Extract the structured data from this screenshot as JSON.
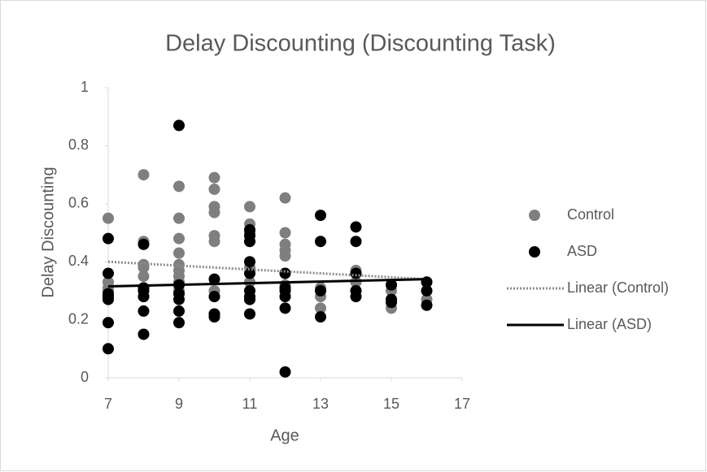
{
  "chart_data": {
    "type": "scatter",
    "title": "Delay Discounting (Discounting Task)",
    "xlabel": "Age",
    "ylabel": "Delay Discounting",
    "xlim": [
      7,
      17
    ],
    "xticks": [
      7,
      9,
      11,
      13,
      15,
      17
    ],
    "ylim": [
      0,
      1
    ],
    "yticks": [
      0,
      0.2,
      0.4,
      0.6,
      0.8,
      1
    ],
    "grid": false,
    "legend": "right",
    "series": [
      {
        "name": "Control",
        "color": "#7f7f7f",
        "mode": "markers",
        "x": [
          7,
          7,
          7,
          7,
          7,
          8,
          8,
          8,
          8,
          8,
          8,
          8,
          9,
          9,
          9,
          9,
          9,
          9,
          9,
          9,
          9,
          10,
          10,
          10,
          10,
          10,
          10,
          10,
          10,
          10,
          11,
          11,
          11,
          11,
          11,
          11,
          11,
          11,
          12,
          12,
          12,
          12,
          12,
          12,
          12,
          12,
          13,
          13,
          13,
          14,
          14,
          14,
          14,
          15,
          15,
          15,
          15,
          16,
          16,
          16
        ],
        "values": [
          0.55,
          0.33,
          0.31,
          0.3,
          0.28,
          0.7,
          0.47,
          0.39,
          0.38,
          0.35,
          0.3,
          0.28,
          0.66,
          0.55,
          0.48,
          0.43,
          0.39,
          0.37,
          0.35,
          0.33,
          0.3,
          0.69,
          0.65,
          0.59,
          0.57,
          0.49,
          0.47,
          0.3,
          0.28,
          0.22,
          0.59,
          0.53,
          0.5,
          0.47,
          0.38,
          0.33,
          0.3,
          0.27,
          0.62,
          0.5,
          0.46,
          0.44,
          0.42,
          0.36,
          0.32,
          0.28,
          0.31,
          0.28,
          0.24,
          0.37,
          0.36,
          0.33,
          0.3,
          0.32,
          0.3,
          0.27,
          0.24,
          0.33,
          0.3,
          0.27
        ]
      },
      {
        "name": "ASD",
        "color": "#000000",
        "mode": "markers",
        "x": [
          7,
          7,
          7,
          7,
          7,
          7,
          7,
          8,
          8,
          8,
          8,
          8,
          8,
          9,
          9,
          9,
          9,
          9,
          9,
          10,
          10,
          10,
          10,
          11,
          11,
          11,
          11,
          11,
          11,
          11,
          11,
          11,
          12,
          12,
          12,
          12,
          12,
          12,
          13,
          13,
          13,
          13,
          14,
          14,
          14,
          14,
          14,
          15,
          15,
          15,
          16,
          16,
          16
        ],
        "values": [
          0.48,
          0.36,
          0.29,
          0.28,
          0.27,
          0.19,
          0.1,
          0.46,
          0.31,
          0.3,
          0.28,
          0.23,
          0.15,
          0.87,
          0.32,
          0.29,
          0.27,
          0.23,
          0.19,
          0.34,
          0.28,
          0.22,
          0.21,
          0.51,
          0.49,
          0.47,
          0.4,
          0.36,
          0.3,
          0.28,
          0.27,
          0.22,
          0.36,
          0.31,
          0.3,
          0.28,
          0.24,
          0.02,
          0.56,
          0.47,
          0.3,
          0.21,
          0.52,
          0.47,
          0.36,
          0.3,
          0.28,
          0.32,
          0.27,
          0.26,
          0.33,
          0.3,
          0.25
        ]
      },
      {
        "name": "Linear (Control)",
        "color": "#8c8c8c",
        "mode": "line",
        "dash": "dotted",
        "x": [
          7,
          16
        ],
        "values": [
          0.4,
          0.34
        ]
      },
      {
        "name": "Linear (ASD)",
        "color": "#000000",
        "mode": "line",
        "dash": "solid",
        "x": [
          7,
          16
        ],
        "values": [
          0.315,
          0.34
        ]
      }
    ]
  }
}
